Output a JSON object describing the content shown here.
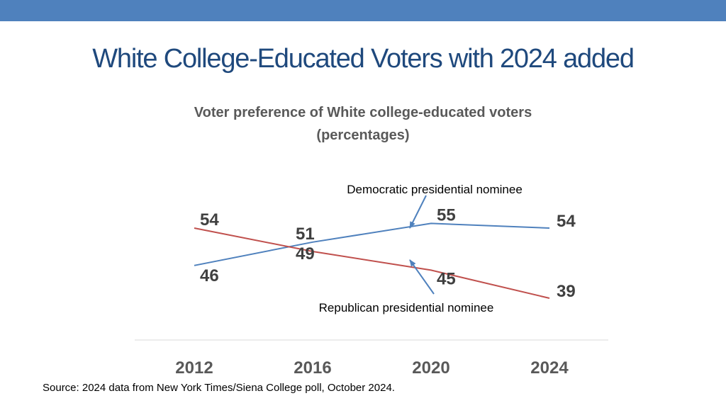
{
  "slide": {
    "title": "White College-Educated Voters with 2024 added",
    "source": "Source: 2024 data from New York Times/Siena College poll, October 2024."
  },
  "colors": {
    "top_bar": "#4f81bd",
    "title": "#1f497d",
    "democratic": "#4f81bd",
    "republican": "#c0504d"
  },
  "chart_data": {
    "type": "line",
    "title_line1": "Voter preference of White college-educated voters",
    "title_line2": "(percentages)",
    "categories": [
      "2012",
      "2016",
      "2020",
      "2024"
    ],
    "series": [
      {
        "name": "Democratic presidential nominee",
        "values": [
          46,
          51,
          55,
          54
        ],
        "color": "#4f81bd"
      },
      {
        "name": "Republican presidential nominee",
        "values": [
          54,
          49,
          45,
          39
        ],
        "color": "#c0504d"
      }
    ],
    "annotations": [
      {
        "text": "Democratic presidential nominee",
        "series": "Democratic presidential nominee"
      },
      {
        "text": "Republican presidential nominee",
        "series": "Republican presidential nominee"
      }
    ],
    "ylim": [
      30,
      60
    ],
    "grid": false
  }
}
